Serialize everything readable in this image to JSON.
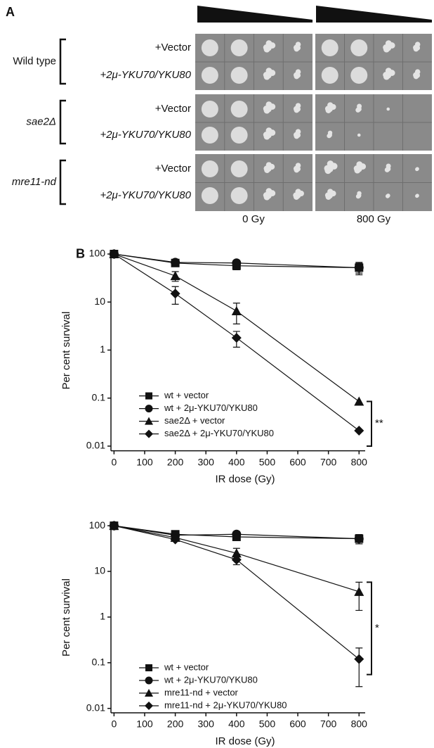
{
  "panel_a": {
    "label": "A",
    "groups": [
      {
        "name": "Wild type",
        "rows": [
          "+Vector",
          "+2μ-YKU70/YKU80"
        ]
      },
      {
        "name": "sae2Δ",
        "rows": [
          "+Vector",
          "+2μ-YKU70/YKU80"
        ]
      },
      {
        "name": "mre11-nd",
        "rows": [
          "+Vector",
          "+2μ-YKU70/YKU80"
        ]
      }
    ],
    "doses": [
      "0 Gy",
      "800 Gy"
    ]
  },
  "chart_data": [
    {
      "type": "line",
      "panel_label": "B",
      "xlabel": "IR dose (Gy)",
      "ylabel": "Per cent survival",
      "log_y": true,
      "xlim": [
        -10,
        820
      ],
      "ylim": [
        0.008,
        120
      ],
      "xticks": [
        0,
        100,
        200,
        300,
        400,
        500,
        600,
        700,
        800
      ],
      "yticks": [
        0.01,
        0.1,
        1,
        10,
        100
      ],
      "x": [
        0,
        200,
        400,
        800
      ],
      "series": [
        {
          "name": "wt + vector",
          "color": "#111111",
          "marker": "square",
          "values": [
            100,
            65,
            57,
            52
          ],
          "errors": [
            null,
            8,
            10,
            15
          ]
        },
        {
          "name": "wt + 2μ-YKU70/YKU80",
          "color": "#111111",
          "marker": "circle",
          "values": [
            100,
            67,
            65,
            52
          ],
          "errors": [
            null,
            5,
            8,
            12
          ]
        },
        {
          "name": "sae2Δ + vector",
          "color": "#111111",
          "marker": "triangle",
          "values": [
            100,
            35,
            6.5,
            0.085
          ],
          "errors": [
            null,
            8,
            3,
            null
          ]
        },
        {
          "name": "sae2Δ + 2μ-YKU70/YKU80",
          "color": "#111111",
          "marker": "diamond",
          "values": [
            100,
            15,
            1.8,
            0.021
          ],
          "errors": [
            null,
            6,
            0.65,
            null
          ]
        }
      ],
      "annotation": "**"
    },
    {
      "type": "line",
      "xlabel": "IR dose (Gy)",
      "ylabel": "Per cent survival",
      "log_y": true,
      "xlim": [
        -10,
        820
      ],
      "ylim": [
        0.008,
        120
      ],
      "xticks": [
        0,
        100,
        200,
        300,
        400,
        500,
        600,
        700,
        800
      ],
      "yticks": [
        0.01,
        0.1,
        1,
        10,
        100
      ],
      "x": [
        0,
        200,
        400,
        800
      ],
      "series": [
        {
          "name": "wt + vector",
          "color": "#111111",
          "marker": "square",
          "values": [
            100,
            65,
            57,
            52
          ],
          "errors": [
            null,
            8,
            8,
            12
          ]
        },
        {
          "name": "wt + 2μ-YKU70/YKU80",
          "color": "#111111",
          "marker": "circle",
          "values": [
            100,
            62,
            65,
            52
          ],
          "errors": [
            null,
            5,
            10,
            12
          ]
        },
        {
          "name": "mre11-nd + vector",
          "color": "#111111",
          "marker": "triangle",
          "values": [
            100,
            55,
            25,
            3.6
          ],
          "errors": [
            null,
            6,
            7,
            2.2
          ]
        },
        {
          "name": "mre11-nd + 2μ-YKU70/YKU80",
          "color": "#111111",
          "marker": "diamond",
          "values": [
            100,
            50,
            18,
            0.12
          ],
          "errors": [
            null,
            null,
            4,
            0.09
          ]
        }
      ],
      "annotation": "*"
    }
  ]
}
